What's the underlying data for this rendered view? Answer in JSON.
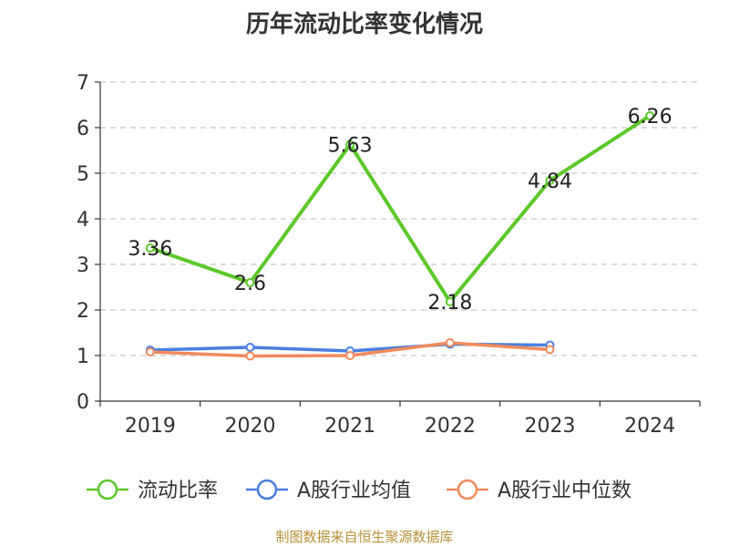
{
  "chart_data": {
    "type": "line",
    "title": "历年流动比率变化情况",
    "categories": [
      "2019",
      "2020",
      "2021",
      "2022",
      "2023",
      "2024"
    ],
    "ylim": [
      0,
      7
    ],
    "yticks": [
      0,
      1,
      2,
      3,
      4,
      5,
      6,
      7
    ],
    "grid": true,
    "legend_position": "bottom",
    "series": [
      {
        "name": "流动比率",
        "color": "#5cc82a",
        "labels": true,
        "values": [
          3.36,
          2.6,
          5.63,
          2.18,
          4.84,
          6.26
        ]
      },
      {
        "name": "A股行业均值",
        "color": "#4a7fe0",
        "labels": false,
        "values": [
          1.12,
          1.18,
          1.1,
          1.25,
          1.23,
          null
        ]
      },
      {
        "name": "A股行业中位数",
        "color": "#f28a5c",
        "labels": false,
        "values": [
          1.08,
          0.99,
          1.0,
          1.28,
          1.13,
          null
        ]
      }
    ]
  },
  "source": "制图数据来自恒生聚源数据库"
}
